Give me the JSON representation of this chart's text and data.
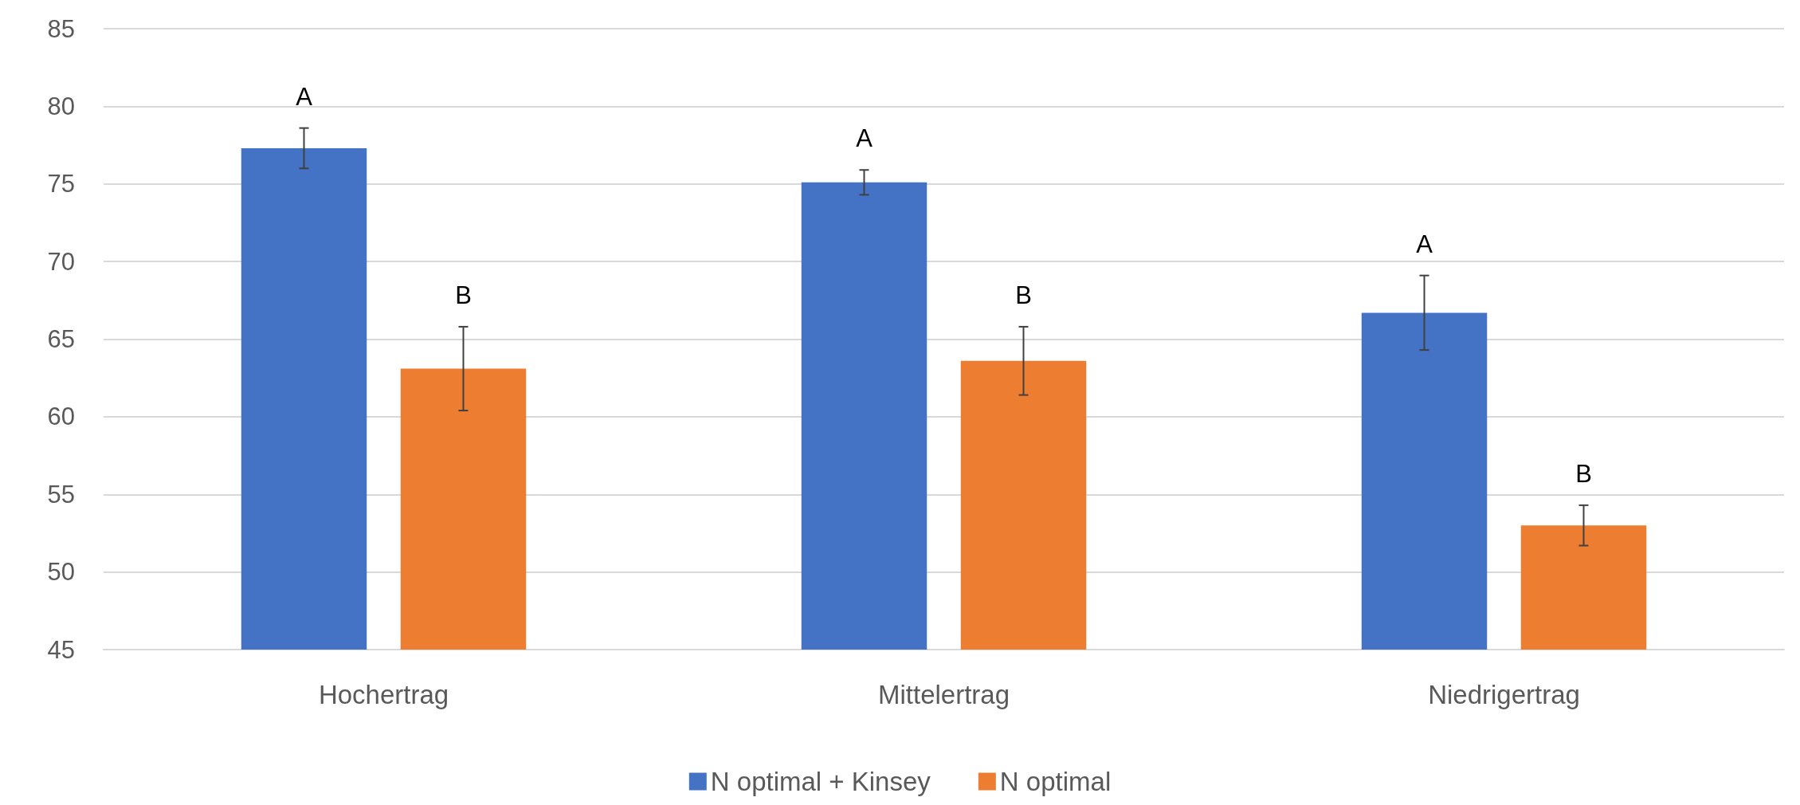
{
  "chart_data": {
    "type": "bar",
    "categories": [
      "Hochertrag",
      "Mittelertrag",
      "Niedrigertrag"
    ],
    "series": [
      {
        "name": "N optimal + Kinsey",
        "color": "#4472c4",
        "values": [
          77.3,
          75.1,
          66.7
        ],
        "errors": [
          1.3,
          0.8,
          2.4
        ],
        "value_labels": [
          "A",
          "A",
          "A"
        ]
      },
      {
        "name": "N optimal",
        "color": "#ed7d31",
        "values": [
          63.1,
          63.6,
          53.0
        ],
        "errors": [
          2.7,
          2.2,
          1.3
        ],
        "value_labels": [
          "B",
          "B",
          "B"
        ]
      }
    ],
    "ylim": [
      45,
      85
    ],
    "yticks": [
      45,
      50,
      55,
      60,
      65,
      70,
      75,
      80,
      85
    ],
    "grid": "y",
    "legend": "bottom"
  }
}
